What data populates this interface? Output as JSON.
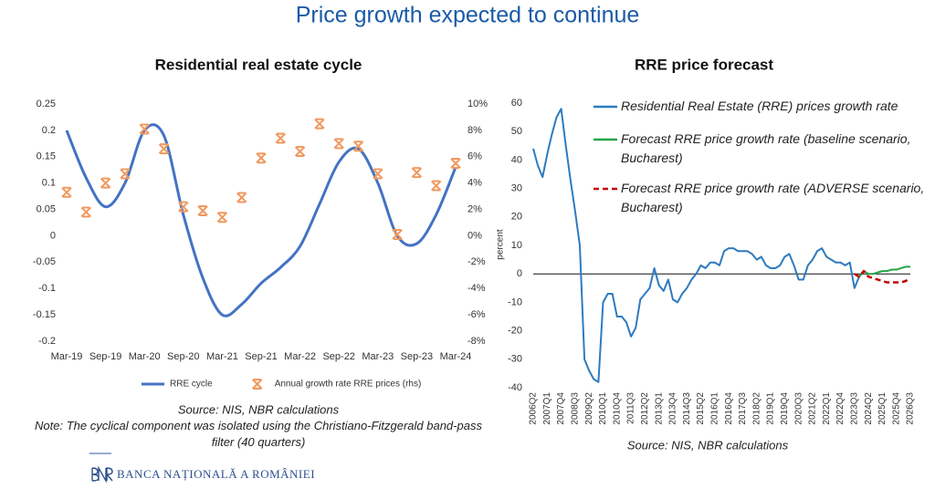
{
  "title": "Price growth expected to continue",
  "footer": "BANCA NAȚIONALĂ A ROMÂNIEI",
  "chart_data": [
    {
      "type": "combo",
      "title": "Residential real estate cycle",
      "source": "Source: NIS, NBR calculations",
      "note": "Note: The cyclical component was isolated using the Christiano-Fitzgerald band-pass filter (40 quarters)",
      "categories": [
        "Mar-19",
        null,
        "Sep-19",
        null,
        "Mar-20",
        null,
        "Sep-20",
        null,
        "Mar-21",
        null,
        "Sep-21",
        null,
        "Mar-22",
        null,
        "Sep-22",
        null,
        "Mar-23",
        null,
        "Sep-23",
        null,
        "Mar-24"
      ],
      "ylim": [
        -0.2,
        0.25
      ],
      "yticks": [
        -0.2,
        -0.15,
        -0.1,
        -0.05,
        0,
        0.05,
        0.1,
        0.15,
        0.2,
        0.25
      ],
      "y2lim": [
        -8,
        10
      ],
      "y2ticks": [
        {
          "value": -8,
          "label": "-8%"
        },
        {
          "value": -6,
          "label": "-6%"
        },
        {
          "value": -4,
          "label": "-4%"
        },
        {
          "value": -2,
          "label": "-2%"
        },
        {
          "value": 0,
          "label": "0%"
        },
        {
          "value": 2,
          "label": "2%"
        },
        {
          "value": 4,
          "label": "4%"
        },
        {
          "value": 6,
          "label": "6%"
        },
        {
          "value": 8,
          "label": "8%"
        },
        {
          "value": 10,
          "label": "10%"
        }
      ],
      "series": [
        {
          "name": "RRE cycle",
          "type": "line",
          "color": "#4472c4",
          "values": [
            0.2,
            0.11,
            0.055,
            0.1,
            0.2,
            0.19,
            0.04,
            -0.08,
            -0.15,
            -0.13,
            -0.09,
            -0.06,
            -0.02,
            0.06,
            0.14,
            0.165,
            0.1,
            0.0,
            -0.015,
            0.04,
            0.13
          ]
        },
        {
          "name": "Annual growth rate RRE prices (rhs)",
          "type": "scatter",
          "axis": "y2",
          "color": "#f0995e",
          "values": [
            3.3,
            1.8,
            4.0,
            4.7,
            8.1,
            6.6,
            2.2,
            1.9,
            1.4,
            2.9,
            5.9,
            7.4,
            6.4,
            8.5,
            7.0,
            6.8,
            4.7,
            0.1,
            4.8,
            3.8,
            5.5
          ]
        }
      ]
    },
    {
      "type": "line",
      "title": "RRE price forecast",
      "source": "Source: NIS, NBR calculations",
      "ylabel": "percent",
      "zero_line": true,
      "categories": [
        "2006Q2",
        null,
        null,
        "2007Q1",
        null,
        null,
        "2007Q4",
        null,
        null,
        "2008Q3",
        null,
        null,
        "2009Q2",
        null,
        null,
        "2010Q1",
        null,
        null,
        "2010Q4",
        null,
        null,
        "2011Q3",
        null,
        null,
        "2012Q2",
        null,
        null,
        "2013Q1",
        null,
        null,
        "2013Q4",
        null,
        null,
        "2014Q3",
        null,
        null,
        "2015Q2",
        null,
        null,
        "2016Q1",
        null,
        null,
        "2016Q4",
        null,
        null,
        "2017Q3",
        null,
        null,
        "2018Q2",
        null,
        null,
        "2019Q1",
        null,
        null,
        "2019Q4",
        null,
        null,
        "2020Q3",
        null,
        null,
        "2021Q2",
        null,
        null,
        "2022Q1",
        null,
        null,
        "2022Q4",
        null,
        null,
        "2023Q3",
        null,
        null,
        "2024Q2",
        null,
        null,
        "2025Q1",
        null,
        null,
        "2025Q4",
        null,
        null,
        "2026Q3"
      ],
      "ylim": [
        -40,
        60
      ],
      "yticks": [
        -40,
        -30,
        -20,
        -10,
        0,
        10,
        20,
        30,
        40,
        50,
        60
      ],
      "series": [
        {
          "name": "Residential Real Estate (RRE) prices growth rate",
          "color": "#2e7bbf",
          "line_style": "solid",
          "values": [
            44,
            38,
            34,
            42,
            49,
            55,
            58,
            45,
            33,
            22,
            10,
            -30,
            -34,
            -37,
            -38,
            -10,
            -7,
            -7,
            -15,
            -15,
            -17,
            -22,
            -19,
            -9,
            -7,
            -5,
            2,
            -4,
            -6,
            -2,
            -9,
            -10,
            -7,
            -5,
            -2,
            0,
            3,
            2,
            4,
            4,
            3,
            8,
            9,
            9,
            8,
            8,
            8,
            7,
            5,
            6,
            3,
            2,
            2,
            3,
            6,
            7,
            3,
            -2,
            -2,
            3,
            5,
            8,
            9,
            6,
            5,
            4,
            4,
            3,
            4,
            -5,
            -1,
            1,
            null,
            null,
            null,
            null,
            null,
            null,
            null,
            null,
            null,
            null
          ]
        },
        {
          "name": "Forecast RRE price growth rate (baseline scenario, Bucharest)",
          "color": "#22a648",
          "line_style": "solid",
          "values": [
            null,
            null,
            null,
            null,
            null,
            null,
            null,
            null,
            null,
            null,
            null,
            null,
            null,
            null,
            null,
            null,
            null,
            null,
            null,
            null,
            null,
            null,
            null,
            null,
            null,
            null,
            null,
            null,
            null,
            null,
            null,
            null,
            null,
            null,
            null,
            null,
            null,
            null,
            null,
            null,
            null,
            null,
            null,
            null,
            null,
            null,
            null,
            null,
            null,
            null,
            null,
            null,
            null,
            null,
            null,
            null,
            null,
            null,
            null,
            null,
            null,
            null,
            null,
            null,
            null,
            null,
            null,
            null,
            null,
            0,
            -1,
            1,
            0,
            0,
            0.5,
            1,
            1,
            1.5,
            1.5,
            2,
            2.5,
            2.5
          ]
        },
        {
          "name": "Forecast RRE price growth rate (ADVERSE scenario, Bucharest)",
          "color": "#c00000",
          "line_style": "dashed",
          "values": [
            null,
            null,
            null,
            null,
            null,
            null,
            null,
            null,
            null,
            null,
            null,
            null,
            null,
            null,
            null,
            null,
            null,
            null,
            null,
            null,
            null,
            null,
            null,
            null,
            null,
            null,
            null,
            null,
            null,
            null,
            null,
            null,
            null,
            null,
            null,
            null,
            null,
            null,
            null,
            null,
            null,
            null,
            null,
            null,
            null,
            null,
            null,
            null,
            null,
            null,
            null,
            null,
            null,
            null,
            null,
            null,
            null,
            null,
            null,
            null,
            null,
            null,
            null,
            null,
            null,
            null,
            null,
            null,
            null,
            0,
            -1,
            1,
            -1,
            -1.5,
            -2,
            -2.5,
            -3,
            -3,
            -3,
            -3,
            -2.5,
            -1.5
          ]
        }
      ]
    }
  ]
}
